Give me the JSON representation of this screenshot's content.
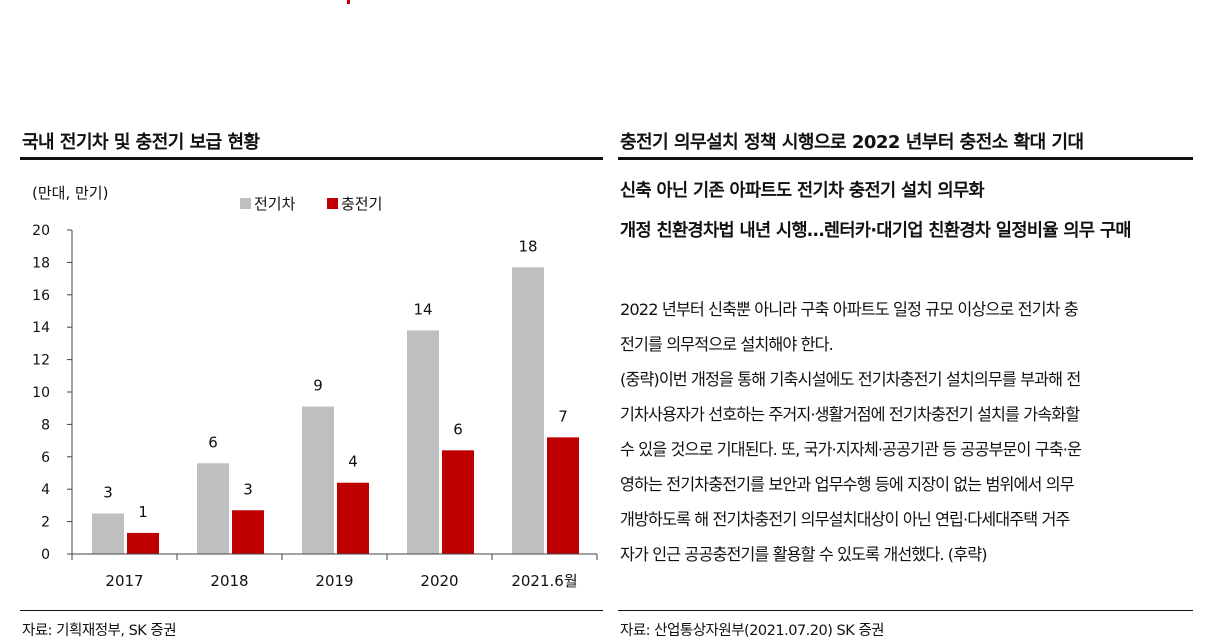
{
  "left_panel": {
    "title": "국내 전기차 및 충전기 보급 현황",
    "source": "자료: 기획재정부, SK 증권"
  },
  "right_panel": {
    "title": "충전기 의무설치 정책 시행으로 2022 년부터 충전소 확대 기대",
    "headline1": "신축 아닌 기존 아파트도 전기차 충전기 설치 의무화",
    "headline2": "개정 친환경차법 내년 시행…렌터카·대기업 친환경차 일정비율 의무 구매",
    "body_lines": [
      "2022 년부터 신축뿐 아니라 구축 아파트도 일정 규모 이상으로 전기차 충",
      "전기를 의무적으로 설치해야 한다.",
      "(중략)이번 개정을 통해 기축시설에도 전기차충전기 설치의무를 부과해 전",
      "기차사용자가 선호하는 주거지·생활거점에 전기차충전기 설치를 가속화할",
      "수 있을 것으로 기대된다. 또, 국가·지자체·공공기관 등 공공부문이 구축·운",
      "영하는 전기차충전기를 보안과 업무수행 등에 지장이 없는 범위에서 의무",
      "개방하도록 해 전기차충전기 의무설치대상이 아닌 연립·다세대주택 거주",
      "자가 인근 공공충전기를 활용할 수 있도록 개선했다. (후략)"
    ],
    "source": "자료: 산업통상자원부(2021.07.20) SK 증권"
  },
  "chart_data": {
    "type": "bar",
    "unit_label": "(만대, 만기)",
    "categories": [
      "2017",
      "2018",
      "2019",
      "2020",
      "2021.6월"
    ],
    "series": [
      {
        "name": "전기차",
        "values": [
          2.5,
          5.6,
          9.1,
          13.8,
          17.7
        ],
        "labels": [
          "3",
          "6",
          "9",
          "14",
          "18"
        ],
        "color": "#bfbfbf"
      },
      {
        "name": "충전기",
        "values": [
          1.3,
          2.7,
          4.4,
          6.4,
          7.2
        ],
        "labels": [
          "1",
          "3",
          "4",
          "6",
          "7"
        ],
        "color": "#c00000"
      }
    ],
    "ylim": [
      0,
      20
    ],
    "yticks": [
      "0",
      "2",
      "4",
      "6",
      "8",
      "10",
      "12",
      "14",
      "16",
      "18",
      "20"
    ],
    "legend_position": "top"
  }
}
